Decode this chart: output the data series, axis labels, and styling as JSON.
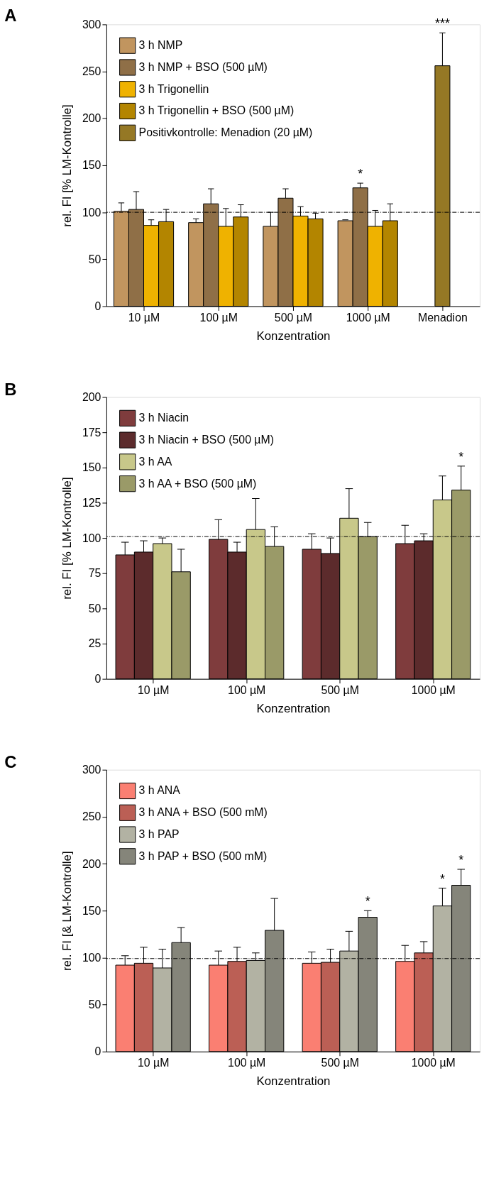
{
  "chart_data": [
    {
      "type": "bar",
      "title": "A",
      "xlabel": "Konzentration",
      "ylabel": "rel. FI [% LM-Kontrolle]",
      "categories": [
        "10 µM",
        "100 µM",
        "500 µM",
        "1000 µM",
        "Menadion"
      ],
      "ylim": [
        0,
        300
      ],
      "yticks": [
        0,
        50,
        100,
        150,
        200,
        250,
        300
      ],
      "grid": false,
      "legend": "top left",
      "series": [
        {
          "name": "3 h NMP",
          "color": "#c1955f",
          "values": [
            101,
            89,
            85,
            91,
            null
          ],
          "errors": [
            [
              101,
              110
            ],
            [
              89,
              93
            ],
            [
              85,
              100
            ],
            [
              91,
              92
            ],
            null
          ]
        },
        {
          "name": "3 h NMP + BSO (500 µM)",
          "color": "#8f6f47",
          "values": [
            103,
            109,
            115,
            126,
            null
          ],
          "value_labels": [
            null,
            null,
            null,
            "*",
            null
          ],
          "errors": [
            [
              103,
              122
            ],
            [
              109,
              125
            ],
            [
              115,
              125
            ],
            [
              126,
              131
            ],
            null
          ]
        },
        {
          "name": "3 h Trigonellin",
          "color": "#efb200",
          "values": [
            86,
            85,
            96,
            85,
            null
          ],
          "errors": [
            [
              86,
              92
            ],
            [
              85,
              104
            ],
            [
              96,
              106
            ],
            [
              85,
              102
            ],
            null
          ]
        },
        {
          "name": "3 h Trigonellin + BSO (500 µM)",
          "color": "#b38500",
          "values": [
            90,
            95,
            93,
            91,
            null
          ],
          "errors": [
            [
              90,
              103
            ],
            [
              95,
              108
            ],
            [
              93,
              99
            ],
            [
              91,
              109
            ],
            null
          ]
        },
        {
          "name": "Positivkontrolle: Menadion (20 µM)",
          "color": "#957825",
          "values": [
            null,
            null,
            null,
            null,
            256
          ],
          "value_labels": [
            null,
            null,
            null,
            null,
            "***"
          ],
          "errors": [
            null,
            null,
            null,
            null,
            [
              256,
              291
            ]
          ]
        }
      ],
      "ref_lines": [
        {
          "axis": "y",
          "value": 100,
          "line_style": "dashed"
        }
      ]
    },
    {
      "type": "bar",
      "title": "B",
      "xlabel": "Konzentration",
      "ylabel": "rel. FI [% LM-Kontrolle]",
      "categories": [
        "10 µM",
        "100 µM",
        "500 µM",
        "1000 µM"
      ],
      "ylim": [
        0,
        200
      ],
      "yticks": [
        0,
        25,
        50,
        75,
        100,
        125,
        150,
        175,
        200
      ],
      "grid": false,
      "legend": "top left",
      "series": [
        {
          "name": "3 h Niacin",
          "color": "#7f3c3d",
          "values": [
            88,
            99,
            92,
            96
          ],
          "errors": [
            [
              88,
              97
            ],
            [
              99,
              113
            ],
            [
              92,
              103
            ],
            [
              96,
              109
            ]
          ]
        },
        {
          "name": "3 h Niacin + BSO (500 µM)",
          "color": "#5c2b2c",
          "values": [
            90,
            90,
            89,
            98
          ],
          "errors": [
            [
              90,
              98
            ],
            [
              90,
              97
            ],
            [
              89,
              100
            ],
            [
              98,
              103
            ]
          ]
        },
        {
          "name": "3 h AA",
          "color": "#c8c88a",
          "values": [
            96,
            106,
            114,
            127
          ],
          "errors": [
            [
              96,
              100
            ],
            [
              106,
              128
            ],
            [
              114,
              135
            ],
            [
              127,
              144
            ]
          ]
        },
        {
          "name": "3 h AA + BSO (500 µM)",
          "color": "#9a9a68",
          "values": [
            76,
            94,
            101,
            134
          ],
          "value_labels": [
            null,
            null,
            null,
            "*"
          ],
          "errors": [
            [
              76,
              92
            ],
            [
              94,
              108
            ],
            [
              101,
              111
            ],
            [
              134,
              151
            ]
          ]
        }
      ],
      "ref_lines": [
        {
          "axis": "y",
          "value": 101,
          "line_style": "dashed"
        }
      ]
    },
    {
      "type": "bar",
      "title": "C",
      "xlabel": "Konzentration",
      "ylabel": "rel. FI [& LM-Kontrolle]",
      "categories": [
        "10 µM",
        "100 µM",
        "500 µM",
        "1000 µM"
      ],
      "ylim": [
        0,
        300
      ],
      "yticks": [
        0,
        50,
        100,
        150,
        200,
        250,
        300
      ],
      "grid": false,
      "legend": "top left",
      "series": [
        {
          "name": "3 h ANA",
          "color": "#fa7f72",
          "values": [
            92,
            92,
            94,
            96
          ],
          "errors": [
            [
              92,
              102
            ],
            [
              92,
              107
            ],
            [
              94,
              106
            ],
            [
              96,
              113
            ]
          ]
        },
        {
          "name": "3 h ANA + BSO (500 mM)",
          "color": "#bb5f55",
          "values": [
            94,
            96,
            95,
            105
          ],
          "errors": [
            [
              94,
              111
            ],
            [
              96,
              111
            ],
            [
              95,
              109
            ],
            [
              105,
              117
            ]
          ]
        },
        {
          "name": "3 h PAP",
          "color": "#b2b2a3",
          "values": [
            89,
            97,
            107,
            155
          ],
          "value_labels": [
            null,
            null,
            null,
            "*"
          ],
          "errors": [
            [
              89,
              109
            ],
            [
              97,
              105
            ],
            [
              107,
              128
            ],
            [
              155,
              174
            ]
          ]
        },
        {
          "name": "3 h PAP + BSO (500 mM)",
          "color": "#85857a",
          "values": [
            116,
            129,
            143,
            177
          ],
          "value_labels": [
            null,
            null,
            "*",
            "*"
          ],
          "errors": [
            [
              116,
              132
            ],
            [
              129,
              163
            ],
            [
              143,
              150
            ],
            [
              177,
              194
            ]
          ]
        }
      ],
      "ref_lines": [
        {
          "axis": "y",
          "value": 99,
          "line_style": "dashed"
        }
      ]
    }
  ]
}
